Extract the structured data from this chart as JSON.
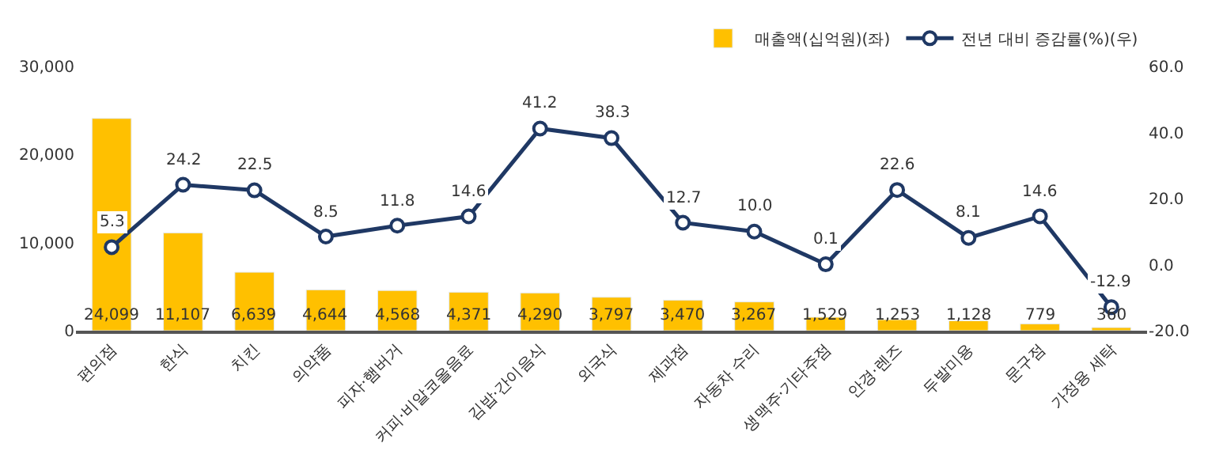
{
  "chart_data": {
    "type": "bar",
    "categories": [
      "편의점",
      "한식",
      "치킨",
      "의약품",
      "피자·햄버거",
      "커피·비알코올음료",
      "김밥·간이음식",
      "외국식",
      "제과점",
      "자동차 수리",
      "생맥주·기타주점",
      "안경·렌즈",
      "두발미용",
      "문구점",
      "가정용 세탁"
    ],
    "series": [
      {
        "name": "매출액(십억원)(좌)",
        "color": "#ffc000",
        "values": [
          24099,
          11107,
          6639,
          4644,
          4568,
          4371,
          4290,
          3797,
          3470,
          3267,
          1529,
          1253,
          1128,
          779,
          360
        ],
        "value_labels": [
          "24,099",
          "11,107",
          "6,639",
          "4,644",
          "4,568",
          "4,371",
          "4,290",
          "3,797",
          "3,470",
          "3,267",
          "1,529",
          "1,253",
          "1,128",
          "779",
          "360"
        ]
      },
      {
        "name": "전년 대비 증감률(%)(우)",
        "type": "line",
        "axis": "y2",
        "color": "#1f3864",
        "marker": "circle",
        "values": [
          5.3,
          24.2,
          22.5,
          8.5,
          11.8,
          14.6,
          41.2,
          38.3,
          12.7,
          10.0,
          0.1,
          22.6,
          8.1,
          14.6,
          -12.9
        ],
        "value_labels": [
          "5.3",
          "24.2",
          "22.5",
          "8.5",
          "11.8",
          "14.6",
          "41.2",
          "38.3",
          "12.7",
          "10.0",
          "0.1",
          "22.6",
          "8.1",
          "14.6",
          "-12.9"
        ]
      }
    ],
    "ylim": [
      0,
      30000
    ],
    "yticks": [
      {
        "value": 0,
        "label": "0"
      },
      {
        "value": 10000,
        "label": "10,000"
      },
      {
        "value": 20000,
        "label": "20,000"
      },
      {
        "value": 30000,
        "label": "30,000"
      }
    ],
    "y2lim": [
      -20,
      60
    ],
    "y2ticks": [
      {
        "value": -20,
        "label": "-20.0"
      },
      {
        "value": 0,
        "label": "0.0"
      },
      {
        "value": 20,
        "label": "20.0"
      },
      {
        "value": 40,
        "label": "40.0"
      },
      {
        "value": 60,
        "label": "60.0"
      }
    ],
    "legend": "top right"
  }
}
